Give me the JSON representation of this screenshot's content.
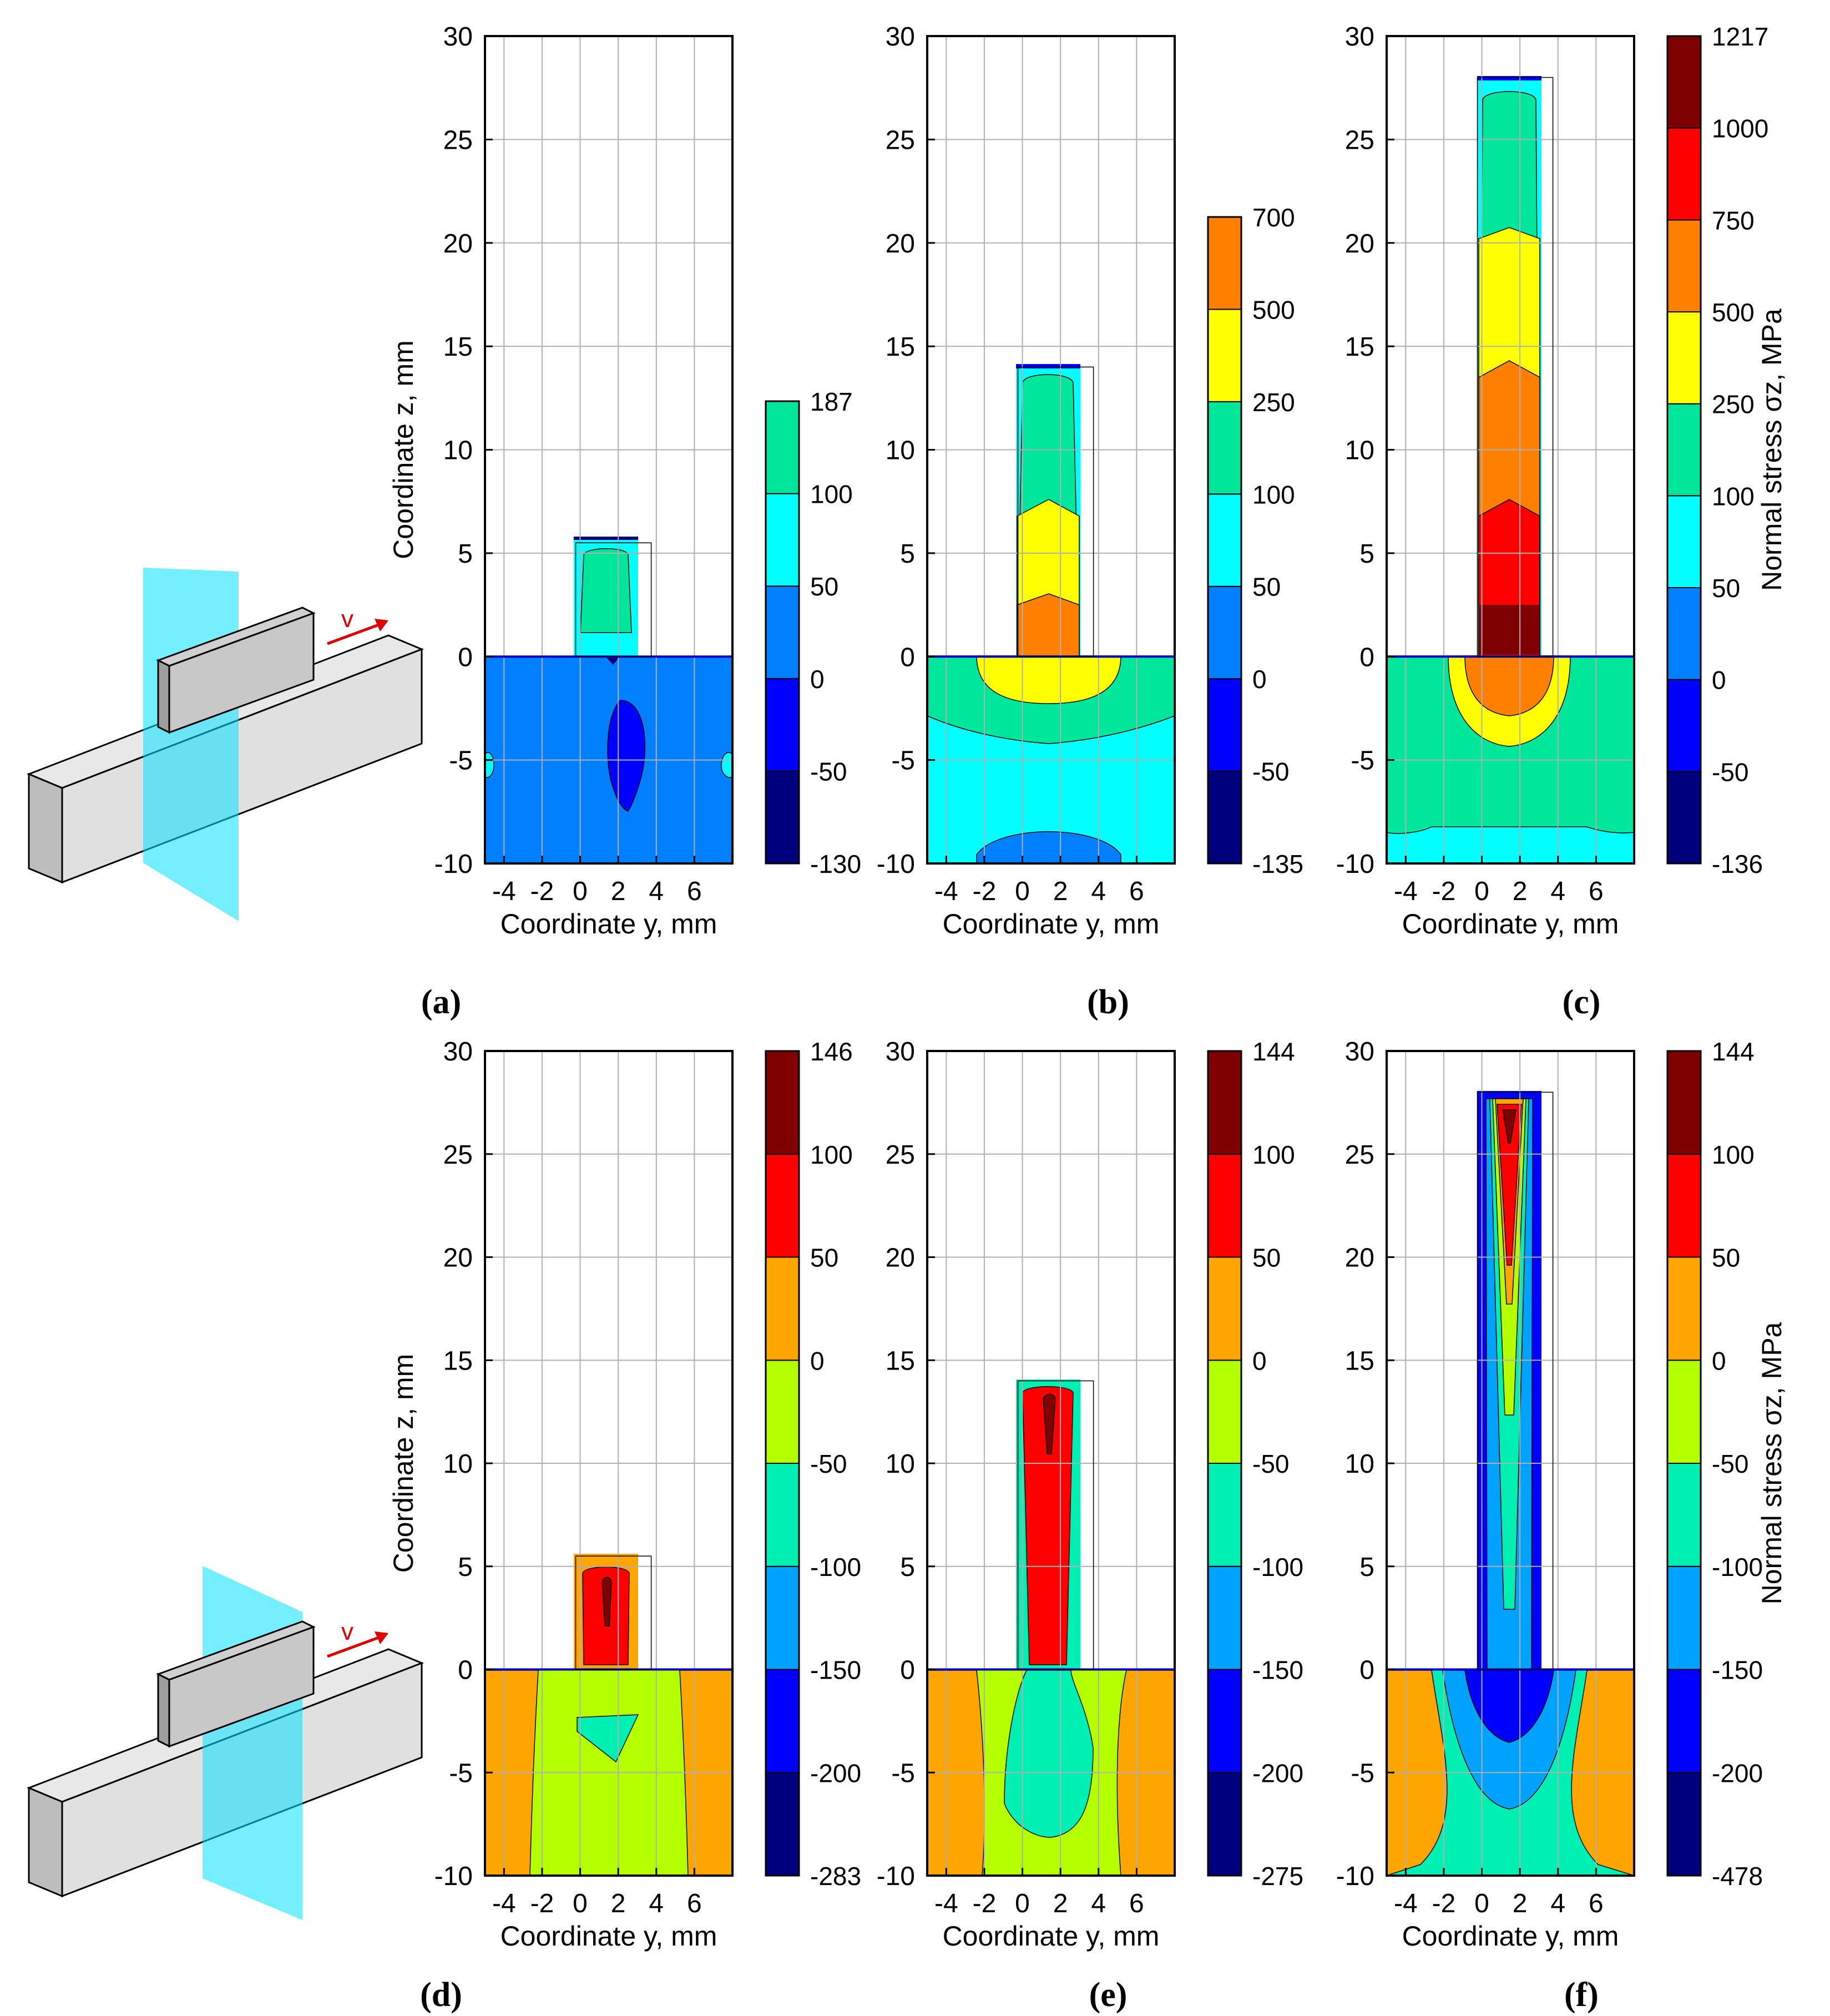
{
  "figure": {
    "panel_labels": [
      "(a)",
      "(b)",
      "(c)",
      "(d)",
      "(e)",
      "(f)"
    ],
    "schematic_velocity_label": "v"
  },
  "colors": {
    "colorbar_top": [
      "#00007f",
      "#0000ff",
      "#0080ff",
      "#00ffff",
      "#00e69b",
      "#ffff00",
      "#ff8000",
      "#ff0000",
      "#7f0000"
    ],
    "colorbar_bottom": [
      "#00007f",
      "#0000ff",
      "#00a2ff",
      "#00f0b4",
      "#b4ff00",
      "#ffa500",
      "#ff0000",
      "#7f0000"
    ],
    "schematic_plane": "#00e1ff",
    "arrow": "#e00000"
  },
  "chart_data": [
    {
      "id": "a",
      "type": "contour",
      "title": "",
      "xlabel": "Coordinate y, mm",
      "ylabel": "Coordinate z, mm",
      "xlim": [
        -5,
        8
      ],
      "ylim": [
        -10,
        30
      ],
      "xticks": [
        -4,
        -2,
        0,
        2,
        4,
        6
      ],
      "yticks": [
        -10,
        -5,
        0,
        5,
        10,
        15,
        20,
        25,
        30
      ],
      "grid": true,
      "wall_y": [
        0,
        3.5
      ],
      "wall_top_z": 5.5,
      "colorbar": {
        "levels": [
          -130,
          -50,
          0,
          50,
          100,
          187
        ],
        "colors": [
          "#00007f",
          "#0000ff",
          "#0080ff",
          "#00ffff",
          "#00e69b"
        ],
        "label": ""
      }
    },
    {
      "id": "b",
      "type": "contour",
      "title": "",
      "xlabel": "Coordinate y, mm",
      "ylabel": "",
      "xlim": [
        -5,
        8
      ],
      "ylim": [
        -10,
        30
      ],
      "xticks": [
        -4,
        -2,
        0,
        2,
        4,
        6
      ],
      "yticks": [
        -10,
        -5,
        0,
        5,
        10,
        15,
        20,
        25,
        30
      ],
      "grid": true,
      "wall_y": [
        0,
        3.5
      ],
      "wall_top_z": 14,
      "colorbar": {
        "levels": [
          -135,
          -50,
          0,
          50,
          100,
          250,
          500,
          700
        ],
        "colors": [
          "#00007f",
          "#0000ff",
          "#0080ff",
          "#00ffff",
          "#00e69b",
          "#ffff00",
          "#ff8000"
        ],
        "label": ""
      }
    },
    {
      "id": "c",
      "type": "contour",
      "title": "",
      "xlabel": "Coordinate y, mm",
      "ylabel": "",
      "xlim": [
        -5,
        8
      ],
      "ylim": [
        -10,
        30
      ],
      "xticks": [
        -4,
        -2,
        0,
        2,
        4,
        6
      ],
      "yticks": [
        -10,
        -5,
        0,
        5,
        10,
        15,
        20,
        25,
        30
      ],
      "grid": true,
      "wall_y": [
        0,
        3.5
      ],
      "wall_top_z": 28,
      "colorbar": {
        "levels": [
          -136,
          -50,
          0,
          50,
          100,
          250,
          500,
          750,
          1000,
          1217
        ],
        "colors": [
          "#00007f",
          "#0000ff",
          "#0080ff",
          "#00ffff",
          "#00e69b",
          "#ffff00",
          "#ff8000",
          "#ff0000",
          "#7f0000"
        ],
        "label": "Normal stress σz, MPa"
      }
    },
    {
      "id": "d",
      "type": "contour",
      "title": "",
      "xlabel": "Coordinate y, mm",
      "ylabel": "Coordinate z, mm",
      "xlim": [
        -5,
        8
      ],
      "ylim": [
        -10,
        30
      ],
      "xticks": [
        -4,
        -2,
        0,
        2,
        4,
        6
      ],
      "yticks": [
        -10,
        -5,
        0,
        5,
        10,
        15,
        20,
        25,
        30
      ],
      "grid": true,
      "wall_y": [
        0,
        3.5
      ],
      "wall_top_z": 5.5,
      "colorbar": {
        "levels": [
          -283,
          -200,
          -150,
          -100,
          -50,
          0,
          50,
          100,
          146
        ],
        "colors": [
          "#00007f",
          "#0000ff",
          "#00a2ff",
          "#00f0b4",
          "#b4ff00",
          "#ffa500",
          "#ff0000",
          "#7f0000"
        ],
        "label": ""
      }
    },
    {
      "id": "e",
      "type": "contour",
      "title": "",
      "xlabel": "Coordinate y, mm",
      "ylabel": "",
      "xlim": [
        -5,
        8
      ],
      "ylim": [
        -10,
        30
      ],
      "xticks": [
        -4,
        -2,
        0,
        2,
        4,
        6
      ],
      "yticks": [
        -10,
        -5,
        0,
        5,
        10,
        15,
        20,
        25,
        30
      ],
      "grid": true,
      "wall_y": [
        0,
        3.5
      ],
      "wall_top_z": 14,
      "colorbar": {
        "levels": [
          -275,
          -200,
          -150,
          -100,
          -50,
          0,
          50,
          100,
          144
        ],
        "colors": [
          "#00007f",
          "#0000ff",
          "#00a2ff",
          "#00f0b4",
          "#b4ff00",
          "#ffa500",
          "#ff0000",
          "#7f0000"
        ],
        "label": ""
      }
    },
    {
      "id": "f",
      "type": "contour",
      "title": "",
      "xlabel": "Coordinate y, mm",
      "ylabel": "",
      "xlim": [
        -5,
        8
      ],
      "ylim": [
        -10,
        30
      ],
      "xticks": [
        -4,
        -2,
        0,
        2,
        4,
        6
      ],
      "yticks": [
        -10,
        -5,
        0,
        5,
        10,
        15,
        20,
        25,
        30
      ],
      "grid": true,
      "wall_y": [
        0,
        3.5
      ],
      "wall_top_z": 28,
      "colorbar": {
        "levels": [
          -478,
          -200,
          -150,
          -100,
          -50,
          0,
          50,
          100,
          144
        ],
        "colors": [
          "#00007f",
          "#0000ff",
          "#00a2ff",
          "#00f0b4",
          "#b4ff00",
          "#ffa500",
          "#ff0000",
          "#7f0000"
        ],
        "label": "Normal stress σz, MPa"
      }
    }
  ]
}
